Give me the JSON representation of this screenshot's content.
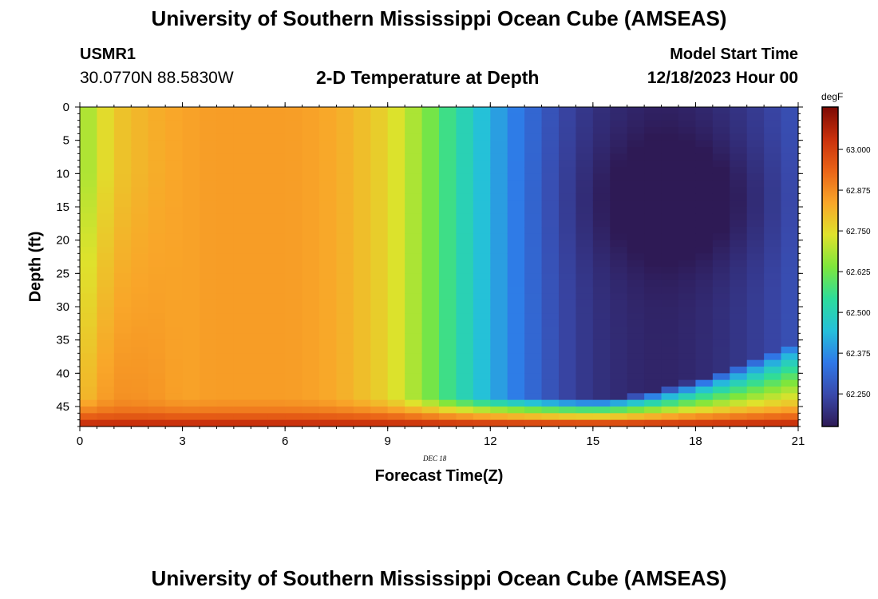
{
  "page": {
    "title": "University of Southern Mississippi Ocean Cube (AMSEAS)",
    "footer_title": "University of Southern Mississippi Ocean Cube (AMSEAS)",
    "station_id": "USMR1",
    "coordinates": "30.0770N  88.5830W",
    "subtitle": "2-D Temperature at Depth",
    "model_start_label": "Model Start Time",
    "model_start_value": "12/18/2023 Hour 00",
    "date_label": "DEC 18"
  },
  "chart_data": {
    "type": "heatmap",
    "title": "2-D Temperature at Depth",
    "xlabel": "Forecast Time(Z)",
    "ylabel": "Depth (ft)",
    "xlim": [
      0,
      21
    ],
    "ylim": [
      0,
      48
    ],
    "x_ticks": [
      0,
      3,
      6,
      9,
      12,
      15,
      18,
      21
    ],
    "y_ticks": [
      0,
      5,
      10,
      15,
      20,
      25,
      30,
      35,
      40,
      45
    ],
    "x_minor_step": 0.5,
    "y_minor_step": 1,
    "grid": false,
    "colorbar": {
      "unit": "degF",
      "range": [
        62.15,
        63.13
      ],
      "ticks": [
        "63.000",
        "62.875",
        "62.750",
        "62.625",
        "62.500",
        "62.375",
        "62.250"
      ],
      "colormap": [
        "#2e1a55",
        "#3949ab",
        "#2f78e8",
        "#25c0da",
        "#2ddc9b",
        "#7ee63c",
        "#dfe22c",
        "#f9a629",
        "#ea6417",
        "#c9300c",
        "#7c0a04"
      ]
    },
    "grid_cell": {
      "dt_hours": 0.5,
      "dz_ft": 1
    },
    "surface_profile": {
      "hours": [
        0,
        1,
        2,
        3,
        4,
        5,
        6,
        7,
        8,
        9,
        10,
        11,
        12,
        13,
        14,
        15,
        16,
        17,
        18,
        19,
        20,
        21
      ],
      "values": [
        62.66,
        62.78,
        62.82,
        62.84,
        62.85,
        62.85,
        62.85,
        62.84,
        62.81,
        62.76,
        62.66,
        62.53,
        62.42,
        62.33,
        62.25,
        62.2,
        62.18,
        62.17,
        62.18,
        62.2,
        62.23,
        62.27
      ]
    },
    "bottom_profile": {
      "depths": [
        44,
        46,
        47,
        48
      ],
      "values": [
        62.9,
        62.96,
        63.02,
        63.07
      ]
    },
    "mid_depth_min": {
      "hour": 17.5,
      "depth": 14,
      "value": 62.15
    }
  }
}
